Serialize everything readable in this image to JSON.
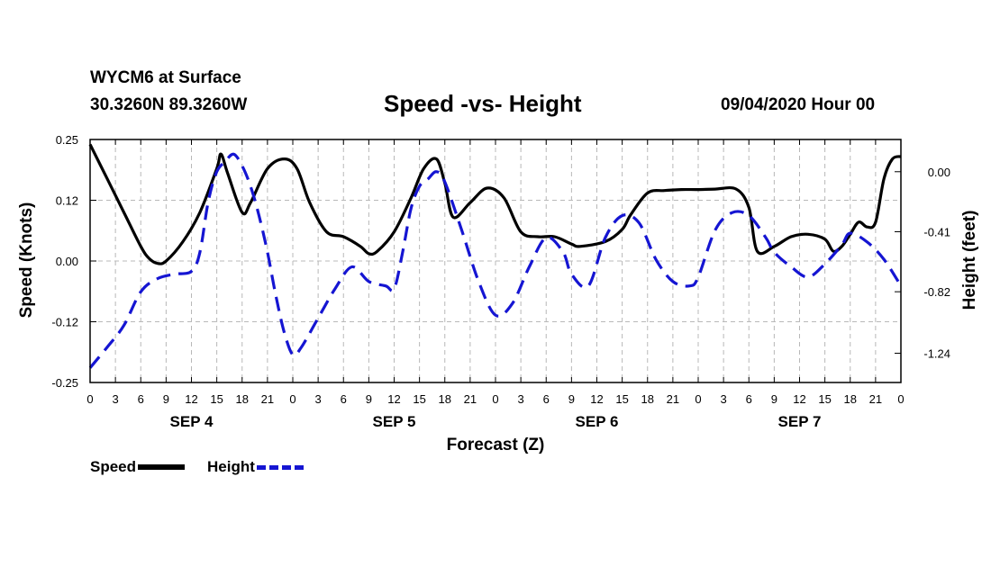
{
  "header": {
    "station": "WYCM6 at Surface",
    "coords": "30.3260N 89.3260W",
    "title": "Speed -vs- Height",
    "datetime": "09/04/2020 Hour 00"
  },
  "legend": {
    "speed_label": "Speed",
    "height_label": "Height"
  },
  "colors": {
    "speed": "#000000",
    "height": "#1515d2",
    "grid": "#b8b8b8"
  },
  "chart_data": {
    "type": "line",
    "title": "Speed -vs- Height",
    "xlabel": "Forecast (Z)",
    "ylabel": "Speed (Knots)",
    "y2label": "Height (feet)",
    "x_hours_range": [
      0,
      96
    ],
    "ylim": [
      -0.25,
      0.25
    ],
    "y2lim": [
      -1.44,
      0.22
    ],
    "y_ticks": [
      "0.25",
      "0.12",
      "0.00",
      "-0.12",
      "-0.25"
    ],
    "y_tick_values": [
      0.25,
      0.125,
      0.0,
      -0.125,
      -0.25
    ],
    "y2_ticks": [
      "0.00",
      "-0.41",
      "-0.82",
      "-1.24"
    ],
    "y2_tick_values": [
      0.0,
      -0.41,
      -0.82,
      -1.24
    ],
    "x_tick_labels": [
      "0",
      "3",
      "6",
      "9",
      "12",
      "15",
      "18",
      "21",
      "0",
      "3",
      "6",
      "9",
      "12",
      "15",
      "18",
      "21",
      "0",
      "3",
      "6",
      "9",
      "12",
      "15",
      "18",
      "21",
      "0",
      "3",
      "6",
      "9",
      "12",
      "15",
      "18",
      "21",
      "0"
    ],
    "day_labels": [
      {
        "label": "SEP 4",
        "hour": 12
      },
      {
        "label": "SEP 5",
        "hour": 36
      },
      {
        "label": "SEP 6",
        "hour": 60
      },
      {
        "label": "SEP 7",
        "hour": 84
      }
    ],
    "grid": true,
    "series": [
      {
        "name": "Speed",
        "axis": "left",
        "style": "solid",
        "x": [
          0,
          2,
          4,
          6,
          7,
          8,
          9,
          11,
          13,
          15,
          15.5,
          16.3,
          18,
          19,
          21,
          23,
          24.5,
          26,
          28,
          30,
          32,
          33,
          34,
          36,
          38,
          39.5,
          41,
          42,
          43,
          45,
          47,
          49,
          51,
          53,
          55,
          57,
          58,
          61,
          63,
          64,
          66,
          68,
          70,
          72,
          74,
          76.5,
          78,
          79,
          81,
          83,
          85,
          87,
          88,
          89,
          90,
          91,
          92,
          93,
          94,
          95,
          96
        ],
        "y": [
          0.24,
          0.17,
          0.1,
          0.03,
          0.005,
          -0.005,
          0.0,
          0.04,
          0.1,
          0.19,
          0.22,
          0.18,
          0.1,
          0.12,
          0.19,
          0.21,
          0.19,
          0.12,
          0.06,
          0.05,
          0.03,
          0.015,
          0.02,
          0.06,
          0.13,
          0.19,
          0.21,
          0.16,
          0.09,
          0.12,
          0.15,
          0.13,
          0.06,
          0.05,
          0.05,
          0.035,
          0.03,
          0.04,
          0.065,
          0.095,
          0.14,
          0.145,
          0.147,
          0.147,
          0.148,
          0.148,
          0.11,
          0.02,
          0.03,
          0.05,
          0.055,
          0.045,
          0.02,
          0.03,
          0.055,
          0.08,
          0.07,
          0.08,
          0.17,
          0.21,
          0.215
        ]
      },
      {
        "name": "Height",
        "axis": "right",
        "style": "dashed",
        "x": [
          0,
          2,
          4,
          6,
          8,
          10,
          12,
          13,
          14,
          15,
          16,
          17,
          18,
          19,
          20,
          21,
          22,
          23,
          24,
          25,
          27,
          29,
          31,
          33,
          35,
          36,
          37,
          38,
          39,
          40,
          41,
          42,
          44,
          46,
          48,
          50,
          52,
          54,
          56,
          57,
          59,
          61,
          63,
          65,
          67,
          69,
          71,
          72,
          74,
          76,
          78,
          80,
          81,
          83,
          85,
          87,
          89,
          90,
          92,
          94,
          96
        ],
        "y": [
          -1.34,
          -1.2,
          -1.05,
          -0.82,
          -0.73,
          -0.7,
          -0.68,
          -0.55,
          -0.2,
          0.0,
          0.07,
          0.12,
          0.04,
          -0.1,
          -0.3,
          -0.55,
          -0.85,
          -1.1,
          -1.25,
          -1.2,
          -1.0,
          -0.8,
          -0.65,
          -0.75,
          -0.78,
          -0.8,
          -0.55,
          -0.25,
          -0.1,
          -0.05,
          0.0,
          -0.07,
          -0.4,
          -0.75,
          -0.98,
          -0.9,
          -0.65,
          -0.45,
          -0.55,
          -0.7,
          -0.78,
          -0.45,
          -0.3,
          -0.35,
          -0.6,
          -0.75,
          -0.78,
          -0.72,
          -0.4,
          -0.28,
          -0.3,
          -0.45,
          -0.55,
          -0.65,
          -0.72,
          -0.63,
          -0.5,
          -0.42,
          -0.48,
          -0.6,
          -0.78
        ]
      }
    ]
  }
}
